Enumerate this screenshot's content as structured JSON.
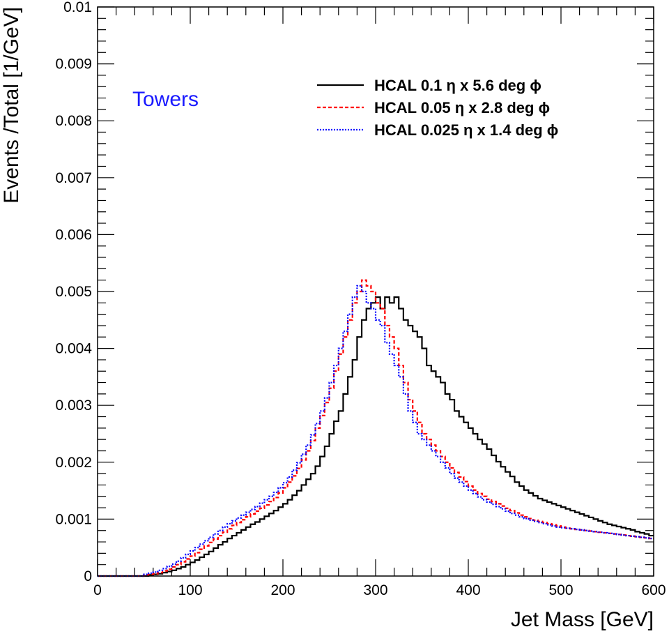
{
  "chart_data": {
    "type": "line",
    "xlabel": "Jet Mass [GeV]",
    "ylabel": "Events /Total [1/GeV]",
    "xlim": [
      0,
      600
    ],
    "ylim": [
      0,
      0.01
    ],
    "x_ticks": [
      "0",
      "100",
      "200",
      "300",
      "400",
      "500",
      "600"
    ],
    "y_ticks": [
      "0",
      "0.001",
      "0.002",
      "0.003",
      "0.004",
      "0.005",
      "0.006",
      "0.007",
      "0.008",
      "0.009",
      "0.01"
    ],
    "annotation": "Towers",
    "annotation_color": "#1a1aff",
    "legend_position": "top-right",
    "bin_width": 5,
    "series": [
      {
        "name": "HCAL 0.1 η x 5.6 deg ϕ",
        "color": "#000000",
        "style": "solid",
        "x": [
          0,
          5,
          10,
          15,
          20,
          25,
          30,
          35,
          40,
          45,
          50,
          55,
          60,
          65,
          70,
          75,
          80,
          85,
          90,
          95,
          100,
          105,
          110,
          115,
          120,
          125,
          130,
          135,
          140,
          145,
          150,
          155,
          160,
          165,
          170,
          175,
          180,
          185,
          190,
          195,
          200,
          205,
          210,
          215,
          220,
          225,
          230,
          235,
          240,
          245,
          250,
          255,
          260,
          265,
          270,
          275,
          280,
          285,
          290,
          295,
          300,
          305,
          310,
          315,
          320,
          325,
          330,
          335,
          340,
          345,
          350,
          355,
          360,
          365,
          370,
          375,
          380,
          385,
          390,
          395,
          400,
          405,
          410,
          415,
          420,
          425,
          430,
          435,
          440,
          445,
          450,
          455,
          460,
          465,
          470,
          475,
          480,
          485,
          490,
          495,
          500,
          505,
          510,
          515,
          520,
          525,
          530,
          535,
          540,
          545,
          550,
          555,
          560,
          565,
          570,
          575,
          580,
          585,
          590,
          595
        ],
        "y": [
          0,
          0,
          0,
          0,
          0,
          0,
          0,
          0,
          0,
          0,
          0,
          2e-05,
          3e-05,
          4e-05,
          6e-05,
          8e-05,
          0.0001,
          0.00013,
          0.00016,
          0.0002,
          0.00024,
          0.00028,
          0.00033,
          0.00038,
          0.00043,
          0.00049,
          0.00055,
          0.0006,
          0.00066,
          0.00071,
          0.00076,
          0.00081,
          0.00086,
          0.00091,
          0.00095,
          0.001,
          0.00105,
          0.0011,
          0.00115,
          0.00121,
          0.00127,
          0.00134,
          0.00142,
          0.0015,
          0.0016,
          0.0017,
          0.0018,
          0.00193,
          0.0021,
          0.00228,
          0.0025,
          0.00272,
          0.0029,
          0.0032,
          0.0035,
          0.0038,
          0.0042,
          0.0045,
          0.0047,
          0.0048,
          0.0049,
          0.0047,
          0.0049,
          0.0048,
          0.0049,
          0.0047,
          0.0045,
          0.0044,
          0.0043,
          0.0042,
          0.004,
          0.0037,
          0.0036,
          0.0035,
          0.0034,
          0.0032,
          0.0031,
          0.0029,
          0.0028,
          0.0027,
          0.0026,
          0.0025,
          0.0024,
          0.00232,
          0.00223,
          0.00212,
          0.00201,
          0.00192,
          0.00183,
          0.00175,
          0.00165,
          0.00158,
          0.00151,
          0.00146,
          0.00141,
          0.00136,
          0.00133,
          0.0013,
          0.00127,
          0.00124,
          0.00121,
          0.00118,
          0.00115,
          0.00112,
          0.00109,
          0.00106,
          0.00103,
          0.001,
          0.00097,
          0.00094,
          0.00091,
          0.00089,
          0.00087,
          0.00085,
          0.00083,
          0.00081,
          0.00078,
          0.00076,
          0.00074,
          0.00071
        ]
      },
      {
        "name": "HCAL 0.05 η x 2.8 deg ϕ",
        "color": "#ff0000",
        "style": "dashed",
        "x": [
          0,
          5,
          10,
          15,
          20,
          25,
          30,
          35,
          40,
          45,
          50,
          55,
          60,
          65,
          70,
          75,
          80,
          85,
          90,
          95,
          100,
          105,
          110,
          115,
          120,
          125,
          130,
          135,
          140,
          145,
          150,
          155,
          160,
          165,
          170,
          175,
          180,
          185,
          190,
          195,
          200,
          205,
          210,
          215,
          220,
          225,
          230,
          235,
          240,
          245,
          250,
          255,
          260,
          265,
          270,
          275,
          280,
          285,
          290,
          295,
          300,
          305,
          310,
          315,
          320,
          325,
          330,
          335,
          340,
          345,
          350,
          355,
          360,
          365,
          370,
          375,
          380,
          385,
          390,
          395,
          400,
          405,
          410,
          415,
          420,
          425,
          430,
          435,
          440,
          445,
          450,
          455,
          460,
          465,
          470,
          475,
          480,
          485,
          490,
          495,
          500,
          505,
          510,
          515,
          520,
          525,
          530,
          535,
          540,
          545,
          550,
          555,
          560,
          565,
          570,
          575,
          580,
          585,
          590,
          595
        ],
        "y": [
          0,
          0,
          0,
          0,
          0,
          0,
          0,
          0,
          0,
          0,
          2e-05,
          3e-05,
          4e-05,
          6e-05,
          9e-05,
          0.00012,
          0.00016,
          0.0002,
          0.00025,
          0.0003,
          0.00035,
          0.00041,
          0.00047,
          0.00053,
          0.00059,
          0.00065,
          0.00071,
          0.00077,
          0.00083,
          0.00089,
          0.00094,
          0.00099,
          0.00104,
          0.00109,
          0.00114,
          0.00119,
          0.00125,
          0.00131,
          0.00138,
          0.00146,
          0.00155,
          0.00165,
          0.00176,
          0.00189,
          0.00204,
          0.0022,
          0.00238,
          0.0026,
          0.00282,
          0.00305,
          0.0033,
          0.0036,
          0.0039,
          0.0042,
          0.0045,
          0.0048,
          0.005,
          0.0052,
          0.0051,
          0.005,
          0.0048,
          0.0047,
          0.0044,
          0.0042,
          0.004,
          0.0037,
          0.0034,
          0.0031,
          0.0029,
          0.0027,
          0.0025,
          0.0024,
          0.0023,
          0.0022,
          0.0021,
          0.002,
          0.0019,
          0.00182,
          0.00174,
          0.00166,
          0.00158,
          0.00151,
          0.00145,
          0.0014,
          0.00135,
          0.00131,
          0.00127,
          0.00123,
          0.00119,
          0.00115,
          0.00111,
          0.00107,
          0.00104,
          0.00101,
          0.00098,
          0.00096,
          0.00094,
          0.00092,
          0.0009,
          0.00088,
          0.00086,
          0.00084,
          0.00083,
          0.00082,
          0.00081,
          0.0008,
          0.00079,
          0.00078,
          0.00077,
          0.00076,
          0.00075,
          0.00074,
          0.00073,
          0.00072,
          0.00071,
          0.0007,
          0.00069,
          0.00068,
          0.00067,
          0.00066
        ]
      },
      {
        "name": "HCAL 0.025 η x 1.4 deg ϕ",
        "color": "#0000ff",
        "style": "dotted",
        "x": [
          0,
          5,
          10,
          15,
          20,
          25,
          30,
          35,
          40,
          45,
          50,
          55,
          60,
          65,
          70,
          75,
          80,
          85,
          90,
          95,
          100,
          105,
          110,
          115,
          120,
          125,
          130,
          135,
          140,
          145,
          150,
          155,
          160,
          165,
          170,
          175,
          180,
          185,
          190,
          195,
          200,
          205,
          210,
          215,
          220,
          225,
          230,
          235,
          240,
          245,
          250,
          255,
          260,
          265,
          270,
          275,
          280,
          285,
          290,
          295,
          300,
          305,
          310,
          315,
          320,
          325,
          330,
          335,
          340,
          345,
          350,
          355,
          360,
          365,
          370,
          375,
          380,
          385,
          390,
          395,
          400,
          405,
          410,
          415,
          420,
          425,
          430,
          435,
          440,
          445,
          450,
          455,
          460,
          465,
          470,
          475,
          480,
          485,
          490,
          495,
          500,
          505,
          510,
          515,
          520,
          525,
          530,
          535,
          540,
          545,
          550,
          555,
          560,
          565,
          570,
          575,
          580,
          585,
          590,
          595
        ],
        "y": [
          0,
          0,
          0,
          0,
          0,
          0,
          0,
          0,
          0,
          0,
          3e-05,
          5e-05,
          7e-05,
          0.0001,
          0.00013,
          0.00017,
          0.00021,
          0.00026,
          0.00032,
          0.00038,
          0.00044,
          0.0005,
          0.00056,
          0.00062,
          0.00068,
          0.00074,
          0.0008,
          0.00086,
          0.00092,
          0.00097,
          0.00102,
          0.00107,
          0.00112,
          0.00117,
          0.00122,
          0.00128,
          0.00134,
          0.0014,
          0.00147,
          0.00155,
          0.00164,
          0.00174,
          0.00186,
          0.00199,
          0.00214,
          0.0023,
          0.00248,
          0.00268,
          0.0029,
          0.00313,
          0.0034,
          0.0037,
          0.004,
          0.0043,
          0.0046,
          0.0049,
          0.0051,
          0.005,
          0.0048,
          0.0047,
          0.0045,
          0.0044,
          0.0041,
          0.0039,
          0.0037,
          0.0035,
          0.0032,
          0.0029,
          0.0027,
          0.0025,
          0.0024,
          0.0023,
          0.0022,
          0.0021,
          0.002,
          0.0019,
          0.0018,
          0.00172,
          0.00165,
          0.00158,
          0.00151,
          0.00145,
          0.00139,
          0.00134,
          0.0013,
          0.00126,
          0.00122,
          0.00118,
          0.00114,
          0.0011,
          0.00107,
          0.00104,
          0.00101,
          0.00098,
          0.00096,
          0.00094,
          0.00092,
          0.0009,
          0.00088,
          0.00086,
          0.00085,
          0.00084,
          0.00083,
          0.00082,
          0.00081,
          0.0008,
          0.00079,
          0.00078,
          0.00077,
          0.00076,
          0.00075,
          0.00074,
          0.00073,
          0.00072,
          0.00071,
          0.0007,
          0.00069,
          0.00068,
          0.00067,
          0.00066
        ]
      }
    ]
  }
}
